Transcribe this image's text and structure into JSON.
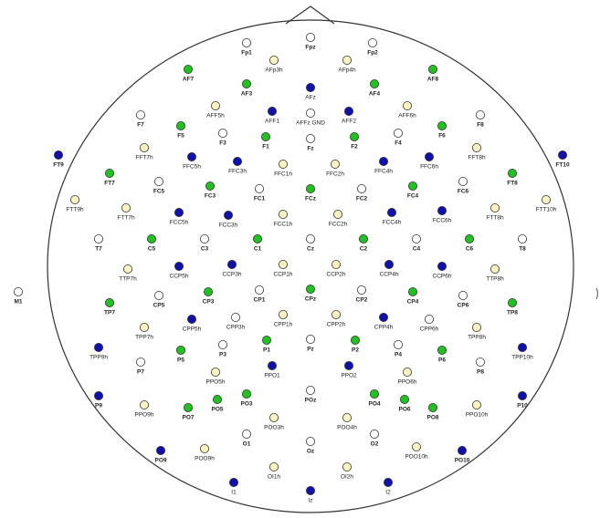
{
  "colors": {
    "green": "#22c022",
    "blue": "#1111aa",
    "cream": "#f7f2c0",
    "white": "#ffffff",
    "outline": "#333333"
  },
  "electrodes": [
    {
      "label": "Fp1",
      "c": "white"
    },
    {
      "label": "Fpz",
      "c": "white"
    },
    {
      "label": "Fp2",
      "c": "white"
    },
    {
      "label": "AFp3h",
      "c": "cream"
    },
    {
      "label": "AFp4h",
      "c": "cream"
    },
    {
      "label": "AF7",
      "c": "green"
    },
    {
      "label": "AF3",
      "c": "green"
    },
    {
      "label": "AFz",
      "c": "blue"
    },
    {
      "label": "AF4",
      "c": "green"
    },
    {
      "label": "AF8",
      "c": "green"
    },
    {
      "label": "AFF5h",
      "c": "cream"
    },
    {
      "label": "AFF1",
      "c": "blue"
    },
    {
      "label": "AFFz GND",
      "c": "white"
    },
    {
      "label": "AFF2",
      "c": "blue"
    },
    {
      "label": "AFF6h",
      "c": "cream"
    },
    {
      "label": "F7",
      "c": "white"
    },
    {
      "label": "F5",
      "c": "green"
    },
    {
      "label": "F3",
      "c": "white"
    },
    {
      "label": "F1",
      "c": "green"
    },
    {
      "label": "Fz",
      "c": "white"
    },
    {
      "label": "F2",
      "c": "green"
    },
    {
      "label": "F4",
      "c": "white"
    },
    {
      "label": "F6",
      "c": "green"
    },
    {
      "label": "F8",
      "c": "white"
    },
    {
      "label": "FT9",
      "c": "blue"
    },
    {
      "label": "FT10",
      "c": "blue"
    },
    {
      "label": "FFT7h",
      "c": "cream"
    },
    {
      "label": "FFC5h",
      "c": "blue"
    },
    {
      "label": "FFC3h",
      "c": "blue"
    },
    {
      "label": "FFC1h",
      "c": "cream"
    },
    {
      "label": "FFC2h",
      "c": "cream"
    },
    {
      "label": "FFC4h",
      "c": "blue"
    },
    {
      "label": "FFC6h",
      "c": "blue"
    },
    {
      "label": "FFT8h",
      "c": "cream"
    },
    {
      "label": "FT7",
      "c": "green"
    },
    {
      "label": "FC5",
      "c": "white"
    },
    {
      "label": "FC3",
      "c": "green"
    },
    {
      "label": "FC1",
      "c": "white"
    },
    {
      "label": "FCz",
      "c": "green"
    },
    {
      "label": "FC2",
      "c": "white"
    },
    {
      "label": "FC4",
      "c": "green"
    },
    {
      "label": "FC6",
      "c": "white"
    },
    {
      "label": "FT8",
      "c": "green"
    },
    {
      "label": "FTT9h",
      "c": "cream"
    },
    {
      "label": "FTT7h",
      "c": "cream"
    },
    {
      "label": "FCC5h",
      "c": "blue"
    },
    {
      "label": "FCC3h",
      "c": "blue"
    },
    {
      "label": "FCC1h",
      "c": "cream"
    },
    {
      "label": "FCC2h",
      "c": "cream"
    },
    {
      "label": "FCC4h",
      "c": "blue"
    },
    {
      "label": "FCC6h",
      "c": "blue"
    },
    {
      "label": "FTT8h",
      "c": "cream"
    },
    {
      "label": "FTT10h",
      "c": "cream"
    },
    {
      "label": "T7",
      "c": "white"
    },
    {
      "label": "C5",
      "c": "green"
    },
    {
      "label": "C3",
      "c": "white"
    },
    {
      "label": "C1",
      "c": "green"
    },
    {
      "label": "Cz",
      "c": "white"
    },
    {
      "label": "C2",
      "c": "green"
    },
    {
      "label": "C4",
      "c": "white"
    },
    {
      "label": "C6",
      "c": "green"
    },
    {
      "label": "T8",
      "c": "white"
    },
    {
      "label": "TTP7h",
      "c": "cream"
    },
    {
      "label": "CCP5h",
      "c": "blue"
    },
    {
      "label": "CCP3h",
      "c": "blue"
    },
    {
      "label": "CCP1h",
      "c": "cream"
    },
    {
      "label": "CCP2h",
      "c": "cream"
    },
    {
      "label": "CCP4h",
      "c": "blue"
    },
    {
      "label": "CCP6h",
      "c": "blue"
    },
    {
      "label": "TTP8h",
      "c": "cream"
    },
    {
      "label": "M1",
      "c": "white"
    },
    {
      "label": "TP7",
      "c": "green"
    },
    {
      "label": "CP5",
      "c": "white"
    },
    {
      "label": "CP3",
      "c": "green"
    },
    {
      "label": "CP1",
      "c": "white"
    },
    {
      "label": "CPz",
      "c": "green"
    },
    {
      "label": "CP2",
      "c": "white"
    },
    {
      "label": "CP4",
      "c": "green"
    },
    {
      "label": "CP6",
      "c": "white"
    },
    {
      "label": "TP8",
      "c": "green"
    },
    {
      "label": "TPP7h",
      "c": "cream"
    },
    {
      "label": "CPP5h",
      "c": "blue"
    },
    {
      "label": "CPP3h",
      "c": "white"
    },
    {
      "label": "CPP1h",
      "c": "cream"
    },
    {
      "label": "CPP2h",
      "c": "cream"
    },
    {
      "label": "CPP4h",
      "c": "blue"
    },
    {
      "label": "CPP6h",
      "c": "white"
    },
    {
      "label": "TPP8h",
      "c": "cream"
    },
    {
      "label": "TPP9h",
      "c": "blue"
    },
    {
      "label": "P7",
      "c": "white"
    },
    {
      "label": "P5",
      "c": "green"
    },
    {
      "label": "P3",
      "c": "white"
    },
    {
      "label": "P1",
      "c": "green"
    },
    {
      "label": "Pz",
      "c": "white"
    },
    {
      "label": "P2",
      "c": "green"
    },
    {
      "label": "P4",
      "c": "white"
    },
    {
      "label": "P6",
      "c": "green"
    },
    {
      "label": "P8",
      "c": "white"
    },
    {
      "label": "TPP10h",
      "c": "blue"
    },
    {
      "label": "PPO5h",
      "c": "cream"
    },
    {
      "label": "PPO1",
      "c": "blue"
    },
    {
      "label": "PPO2",
      "c": "blue"
    },
    {
      "label": "PPO6h",
      "c": "cream"
    },
    {
      "label": "P9",
      "c": "blue"
    },
    {
      "label": "PPO9h",
      "c": "cream"
    },
    {
      "label": "PO7",
      "c": "green"
    },
    {
      "label": "PO5",
      "c": "green"
    },
    {
      "label": "PO3",
      "c": "green"
    },
    {
      "label": "POz",
      "c": "white"
    },
    {
      "label": "PO4",
      "c": "green"
    },
    {
      "label": "PO6",
      "c": "green"
    },
    {
      "label": "PO8",
      "c": "green"
    },
    {
      "label": "PPO10h",
      "c": "cream"
    },
    {
      "label": "P10",
      "c": "blue"
    },
    {
      "label": "POO3h",
      "c": "cream"
    },
    {
      "label": "POO4h",
      "c": "cream"
    },
    {
      "label": "O1",
      "c": "white"
    },
    {
      "label": "O2",
      "c": "white"
    },
    {
      "label": "PO9",
      "c": "blue"
    },
    {
      "label": "POO9h",
      "c": "cream"
    },
    {
      "label": "Oz",
      "c": "white"
    },
    {
      "label": "POO10h",
      "c": "cream"
    },
    {
      "label": "PO10",
      "c": "blue"
    },
    {
      "label": "OI1h",
      "c": "cream"
    },
    {
      "label": "OI2h",
      "c": "cream"
    },
    {
      "label": "I1",
      "c": "blue"
    },
    {
      "label": "I2",
      "c": "blue"
    },
    {
      "label": "Iz",
      "c": "blue"
    }
  ]
}
